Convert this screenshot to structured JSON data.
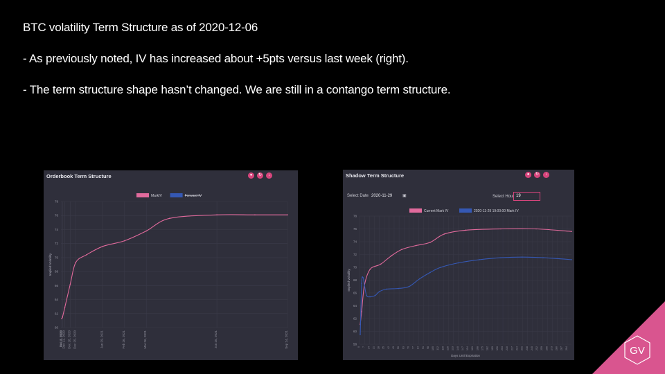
{
  "slide": {
    "line1": "BTC volatility Term Structure as of 2020-12-06",
    "line2": "- As previously noted, IV has increased about +5pts versus last week (right).",
    "line3": "- The term structure shape hasn’t changed. We are still in a contango term structure.",
    "logo_text": "GV",
    "accent_color": "#d9558f"
  },
  "left_panel": {
    "title": "Orderbook Term Structure",
    "buttons": [
      "camera-icon",
      "refresh-icon",
      "download-icon"
    ]
  },
  "right_panel": {
    "title": "Shadow Term Structure",
    "select_date_label": "Select Date",
    "select_date_value": "2020-11-29",
    "select_hour_label": "Select Hour",
    "select_hour_value": "19",
    "buttons": [
      "camera-icon",
      "refresh-icon",
      "download-icon"
    ]
  },
  "chart_data": [
    {
      "type": "line",
      "title": "Orderbook Term Structure",
      "xlabel": "",
      "ylabel": "Implied Volatility",
      "ylim": [
        60,
        78
      ],
      "yticks": [
        60,
        62,
        64,
        66,
        68,
        70,
        72,
        74,
        76,
        78
      ],
      "xticks": [
        "Dec 7, 2020",
        "Dec 8, 2020",
        "Dec 11, 2020",
        "Dec 18, 2020",
        "Dec 25, 2020",
        "Jan 29, 2021",
        "Feb 26, 2021",
        "Mar 26, 2021",
        "Jun 25, 2021",
        "Sep 24, 2021"
      ],
      "xtick_days": [
        1,
        2,
        5,
        12,
        19,
        54,
        82,
        110,
        201,
        292
      ],
      "xlim": [
        0,
        292
      ],
      "legend": "top-center",
      "series": [
        {
          "name": "MarkIV",
          "color": "#e16a9c",
          "points": [
            [
              1,
              61.3
            ],
            [
              2,
              61.5
            ],
            [
              5,
              62.9
            ],
            [
              12,
              66.2
            ],
            [
              19,
              69.3
            ],
            [
              33,
              70.4
            ],
            [
              54,
              71.6
            ],
            [
              82,
              72.4
            ],
            [
              110,
              73.8
            ],
            [
              140,
              75.6
            ],
            [
              201,
              76.1
            ],
            [
              250,
              76.1
            ],
            [
              292,
              76.1
            ]
          ]
        },
        {
          "name": "Forward IV",
          "color": "#3558b4",
          "hidden": true,
          "points": []
        }
      ]
    },
    {
      "type": "line",
      "title": "Shadow Term Structure",
      "xlabel": "Days Until Expiration",
      "ylabel": "Implied Volatility",
      "ylim": [
        58,
        78
      ],
      "yticks": [
        58,
        60,
        62,
        64,
        66,
        68,
        70,
        72,
        74,
        76,
        78
      ],
      "x_tick_step": 7,
      "xlim": [
        0,
        300
      ],
      "legend": "top-center",
      "series": [
        {
          "name": "Current Mark IV",
          "color": "#e16a9c",
          "points": [
            [
              1,
              61.1
            ],
            [
              3,
              63.1
            ],
            [
              7,
              67.2
            ],
            [
              15,
              69.7
            ],
            [
              30,
              70.5
            ],
            [
              45,
              71.8
            ],
            [
              60,
              72.8
            ],
            [
              80,
              73.4
            ],
            [
              100,
              73.9
            ],
            [
              120,
              75.2
            ],
            [
              150,
              75.8
            ],
            [
              200,
              76.0
            ],
            [
              250,
              76.0
            ],
            [
              300,
              75.6
            ]
          ]
        },
        {
          "name": "2020-11-29 19:00:00 Mark IV",
          "color": "#3558b4",
          "points": [
            [
              1,
              59.5
            ],
            [
              3,
              67.5
            ],
            [
              5,
              68.4
            ],
            [
              7,
              67.2
            ],
            [
              10,
              65.6
            ],
            [
              15,
              65.4
            ],
            [
              22,
              65.6
            ],
            [
              28,
              66.2
            ],
            [
              38,
              66.6
            ],
            [
              55,
              66.7
            ],
            [
              70,
              67.0
            ],
            [
              85,
              68.2
            ],
            [
              100,
              69.2
            ],
            [
              115,
              70.0
            ],
            [
              140,
              70.7
            ],
            [
              170,
              71.2
            ],
            [
              200,
              71.5
            ],
            [
              230,
              71.6
            ],
            [
              260,
              71.5
            ],
            [
              300,
              71.2
            ]
          ]
        }
      ]
    }
  ]
}
